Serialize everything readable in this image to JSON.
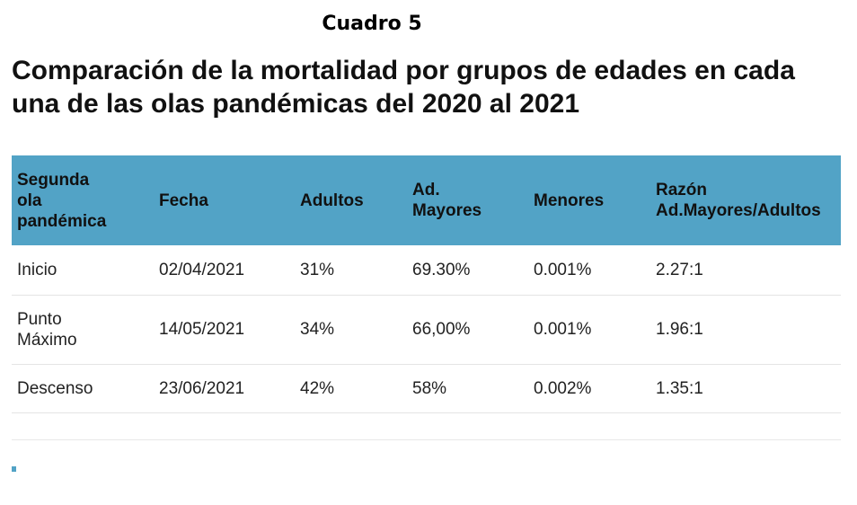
{
  "heading": "Cuadro 5",
  "title": "Comparación de la mortalidad por grupos de edades en cada una de las olas pandémicas del 2020 al 2021",
  "colors": {
    "header_bg": "#52a3c6",
    "accent_mark": "#52a3c6"
  },
  "chart_data": {
    "type": "table",
    "columns": [
      "Segunda\nola\npandémica",
      "Fecha",
      "Adultos",
      "Ad.\nMayores",
      "Menores",
      "Razón\nAd.Mayores/Adultos"
    ],
    "rows": [
      [
        "Inicio",
        "02/04/2021",
        "31%",
        "69.30%",
        "0.001%",
        "2.27:1"
      ],
      [
        "Punto\nMáximo",
        "14/05/2021",
        "34%",
        "66,00%",
        "0.001%",
        "1.96:1"
      ],
      [
        "Descenso",
        "23/06/2021",
        "42%",
        "58%",
        "0.002%",
        "1.35:1"
      ]
    ]
  }
}
